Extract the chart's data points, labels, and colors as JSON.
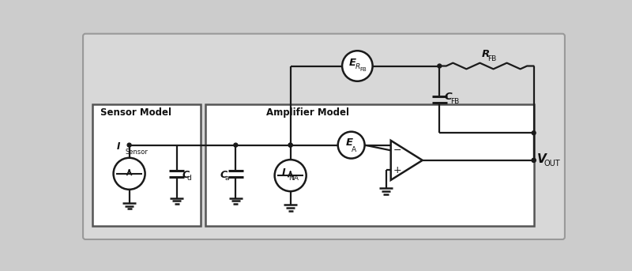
{
  "bg_color": "#cccccc",
  "panel_color": "#d8d8d8",
  "box_color": "#ffffff",
  "line_color": "#1a1a1a",
  "sensor_label": "Sensor Model",
  "amp_label": "Amplifier Model",
  "vout_label": "V",
  "vout_sub": "OUT",
  "rfb_label": "R",
  "rfb_sub": "FB",
  "cfb_label": "C",
  "cfb_sub": "FB",
  "erfb_label": "E",
  "erfb_sub_main": "R",
  "erfb_sub_sub": "FB",
  "ea_label": "E",
  "ea_sub": "A",
  "ina_label": "I",
  "ina_sub": "NA",
  "isensor_label": "I",
  "isensor_sub": "Sensor",
  "cd_label": "C",
  "cd_sub": "d",
  "ca_label": "C",
  "ca_sub": "a"
}
